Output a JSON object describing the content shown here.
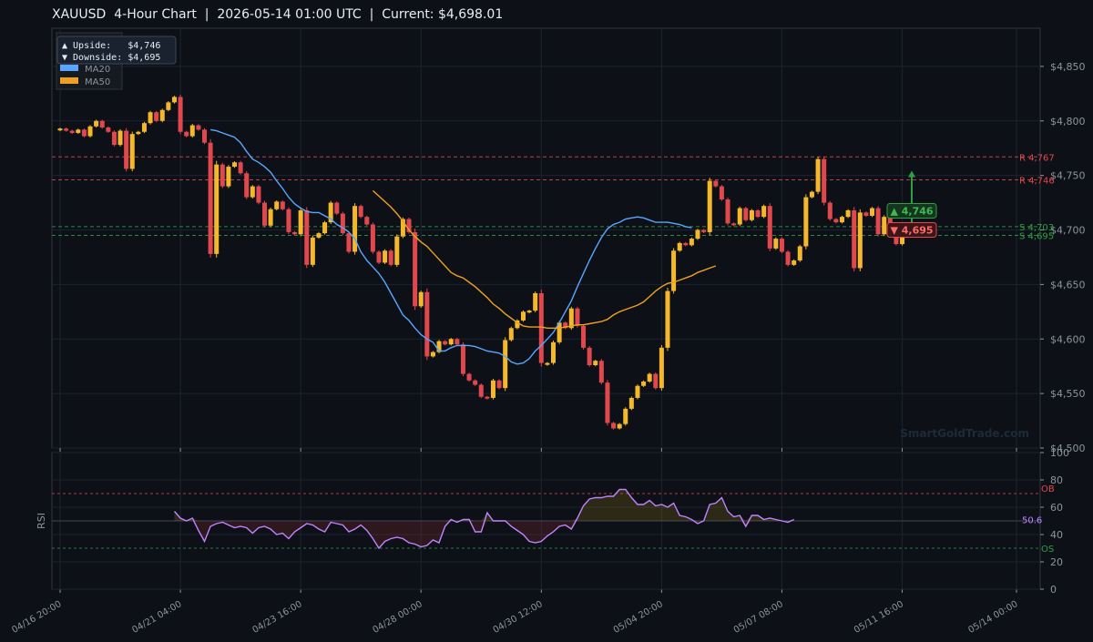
{
  "title": "XAUUSD  4-Hour Chart  |  2026-05-14 01:00 UTC  |  Current: $4,698.01",
  "watermark": "SmartGoldTrade.com",
  "colors": {
    "bg": "#0d1117",
    "up": "#f5b82a",
    "down": "#e0484e",
    "ma20": "#58a6ff",
    "ma50": "#f0a020",
    "rsi": "#c084fc",
    "res": "#e0484e",
    "sup": "#2ea043"
  },
  "chart_data": [
    {
      "type": "candlestick",
      "ylim": [
        4500,
        4885
      ],
      "yticks": [
        4500,
        4550,
        4600,
        4650,
        4700,
        4750,
        4800,
        4850
      ],
      "ytick_labels": [
        "$4,500",
        "$4,550",
        "$4,600",
        "$4,650",
        "$4,700",
        "$4,750",
        "$4,800",
        "$4,850"
      ],
      "xlim": [
        -1,
        161
      ],
      "xticks": [
        0,
        20,
        40,
        60,
        80,
        100,
        120,
        140,
        159
      ],
      "xtick_labels": [
        "04/16 20:00",
        "04/21 04:00",
        "04/23 16:00",
        "04/28 00:00",
        "04/30 12:00",
        "05/04 20:00",
        "05/07 08:00",
        "05/11 16:00",
        "05/14 00:00"
      ],
      "levels": [
        {
          "kind": "resistance",
          "value": 4767,
          "label": "R 4,767"
        },
        {
          "kind": "resistance",
          "value": 4746,
          "label": "R 4,746"
        },
        {
          "kind": "support",
          "value": 4703,
          "label": "S 4,703"
        },
        {
          "kind": "support",
          "value": 4695,
          "label": "S 4,695"
        }
      ],
      "legend": {
        "placement": "top-left",
        "upside_label": "▲ Upside:   $4,746",
        "downside_label": "▼ Downside: $4,695",
        "series": [
          "MA20",
          "MA50"
        ]
      },
      "targets": {
        "up_label": "▲ 4,746",
        "up_value": 4746,
        "down_label": "▼ 4,695",
        "down_value": 4695,
        "current_value": 4698
      },
      "close": [
        4793,
        4791,
        4789,
        4792,
        4786,
        4795,
        4800,
        4794,
        4790,
        4778,
        4791,
        4756,
        4788,
        4790,
        4798,
        4808,
        4800,
        4810,
        4817,
        4822,
        4790,
        4786,
        4796,
        4792,
        4780,
        4678,
        4760,
        4740,
        4758,
        4762,
        4752,
        4730,
        4740,
        4725,
        4704,
        4719,
        4726,
        4719,
        4698,
        4696,
        4718,
        4668,
        4693,
        4697,
        4707,
        4725,
        4715,
        4697,
        4680,
        4722,
        4712,
        4705,
        4680,
        4670,
        4681,
        4668,
        4694,
        4710,
        4698,
        4630,
        4643,
        4584,
        4588,
        4598,
        4595,
        4600,
        4595,
        4568,
        4562,
        4558,
        4547,
        4546,
        4562,
        4555,
        4599,
        4610,
        4617,
        4625,
        4626,
        4642,
        4578,
        4578,
        4597,
        4615,
        4610,
        4628,
        4612,
        4592,
        4576,
        4580,
        4560,
        4523,
        4518,
        4522,
        4536,
        4546,
        4557,
        4561,
        4568,
        4555,
        4592,
        4644,
        4681,
        4688,
        4686,
        4692,
        4700,
        4698,
        4745,
        4740,
        4728,
        4706,
        4705,
        4720,
        4709,
        4718,
        4712,
        4722,
        4683,
        4692,
        4680,
        4668,
        4672,
        4685,
        4730,
        4735,
        4765,
        4725,
        4710,
        4707,
        4712,
        4718,
        4665,
        4716,
        4713,
        4720,
        4696,
        4712,
        4697,
        4687,
        4698
      ],
      "ma20": [
        4792,
        4791,
        4789,
        4787,
        4785,
        4780,
        4772,
        4765,
        4762,
        4758,
        4753,
        4745,
        4738,
        4730,
        4724,
        4720,
        4717,
        4716,
        4716,
        4713,
        4710,
        4705,
        4702,
        4698,
        4692,
        4680,
        4672,
        4666,
        4660,
        4652,
        4642,
        4632,
        4622,
        4617,
        4610,
        4604,
        4600,
        4597,
        4589,
        4589,
        4592,
        4594,
        4594,
        4594,
        4593,
        4591,
        4589,
        4588,
        4587,
        4584,
        4579,
        4577,
        4578,
        4582,
        4589,
        4594,
        4600,
        4606,
        4615,
        4625,
        4635,
        4648,
        4660,
        4672,
        4683,
        4693,
        4701,
        4705,
        4707,
        4710,
        4711,
        4712,
        4711,
        4709,
        4707,
        4707,
        4707,
        4706,
        4705,
        4703,
        4702
      ],
      "ma20_start": 25,
      "ma50": [
        4736,
        4731,
        4726,
        4721,
        4715,
        4708,
        4700,
        4694,
        4689,
        4685,
        4679,
        4673,
        4667,
        4661,
        4658,
        4656,
        4652,
        4648,
        4643,
        4638,
        4632,
        4628,
        4623,
        4619,
        4615,
        4612,
        4611,
        4611,
        4611,
        4610,
        4610,
        4610,
        4611,
        4612,
        4613,
        4613,
        4614,
        4615,
        4616,
        4618,
        4622,
        4625,
        4627,
        4629,
        4631,
        4634,
        4639,
        4644,
        4648,
        4651,
        4652,
        4654,
        4656,
        4658,
        4661,
        4663,
        4665,
        4667
      ],
      "ma50_start": 52
    },
    {
      "type": "line",
      "ylabel": "RSI",
      "ylim": [
        0,
        100
      ],
      "yticks": [
        0,
        20,
        40,
        60,
        80,
        100
      ],
      "ytick_labels": [
        "0",
        "20",
        "40",
        "60",
        "80",
        "100"
      ],
      "overbought": 70,
      "oversold": 30,
      "ob_label": "OB",
      "os_label": "OS",
      "last_label": "50.6",
      "start": 19,
      "rsi": [
        57,
        52,
        50,
        52,
        43,
        35,
        46,
        48,
        49,
        47,
        45,
        46,
        45,
        41,
        45,
        46,
        44,
        40,
        41,
        37,
        42,
        45,
        48,
        47,
        44,
        42,
        49,
        48,
        47,
        42,
        44,
        47,
        43,
        37,
        30,
        35,
        37,
        38,
        37,
        34,
        33,
        31,
        32,
        36,
        34,
        46,
        51,
        49,
        51,
        51,
        42,
        42,
        56,
        50,
        50,
        50,
        46,
        43,
        40,
        35,
        34,
        35,
        39,
        42,
        46,
        47,
        44,
        52,
        61,
        66,
        67,
        67,
        68,
        68,
        73,
        73,
        67,
        62,
        62,
        65,
        61,
        62,
        60,
        63,
        54,
        53,
        51,
        48,
        50,
        62,
        63,
        67,
        57,
        53,
        54,
        46,
        54,
        54,
        51,
        52,
        51,
        50,
        49,
        51
      ]
    }
  ]
}
